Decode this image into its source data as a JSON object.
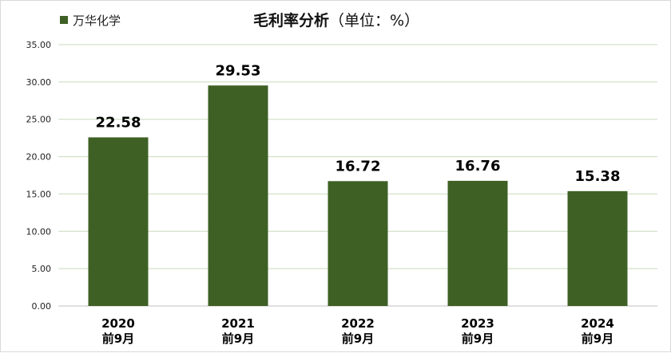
{
  "chart_data": {
    "type": "bar",
    "title": "毛利率分析",
    "title_unit": "（单位：%）",
    "legend_position": "top-left",
    "grid": true,
    "categories": [
      [
        "2020",
        "前9月"
      ],
      [
        "2021",
        "前9月"
      ],
      [
        "2022",
        "前9月"
      ],
      [
        "2023",
        "前9月"
      ],
      [
        "2024",
        "前9月"
      ]
    ],
    "series": [
      {
        "name": "万华化学",
        "values": [
          22.58,
          29.53,
          16.72,
          16.76,
          15.38
        ],
        "color": "#3e6024"
      }
    ],
    "data_labels": [
      "22.58",
      "29.53",
      "16.72",
      "16.76",
      "15.38"
    ],
    "ylim": [
      0,
      35
    ],
    "yticks": [
      "0.00",
      "5.00",
      "10.00",
      "15.00",
      "20.00",
      "25.00",
      "30.00",
      "35.00"
    ],
    "ytick_values": [
      0,
      5,
      10,
      15,
      20,
      25,
      30,
      35
    ],
    "grid_color": "#c8dcbc"
  }
}
